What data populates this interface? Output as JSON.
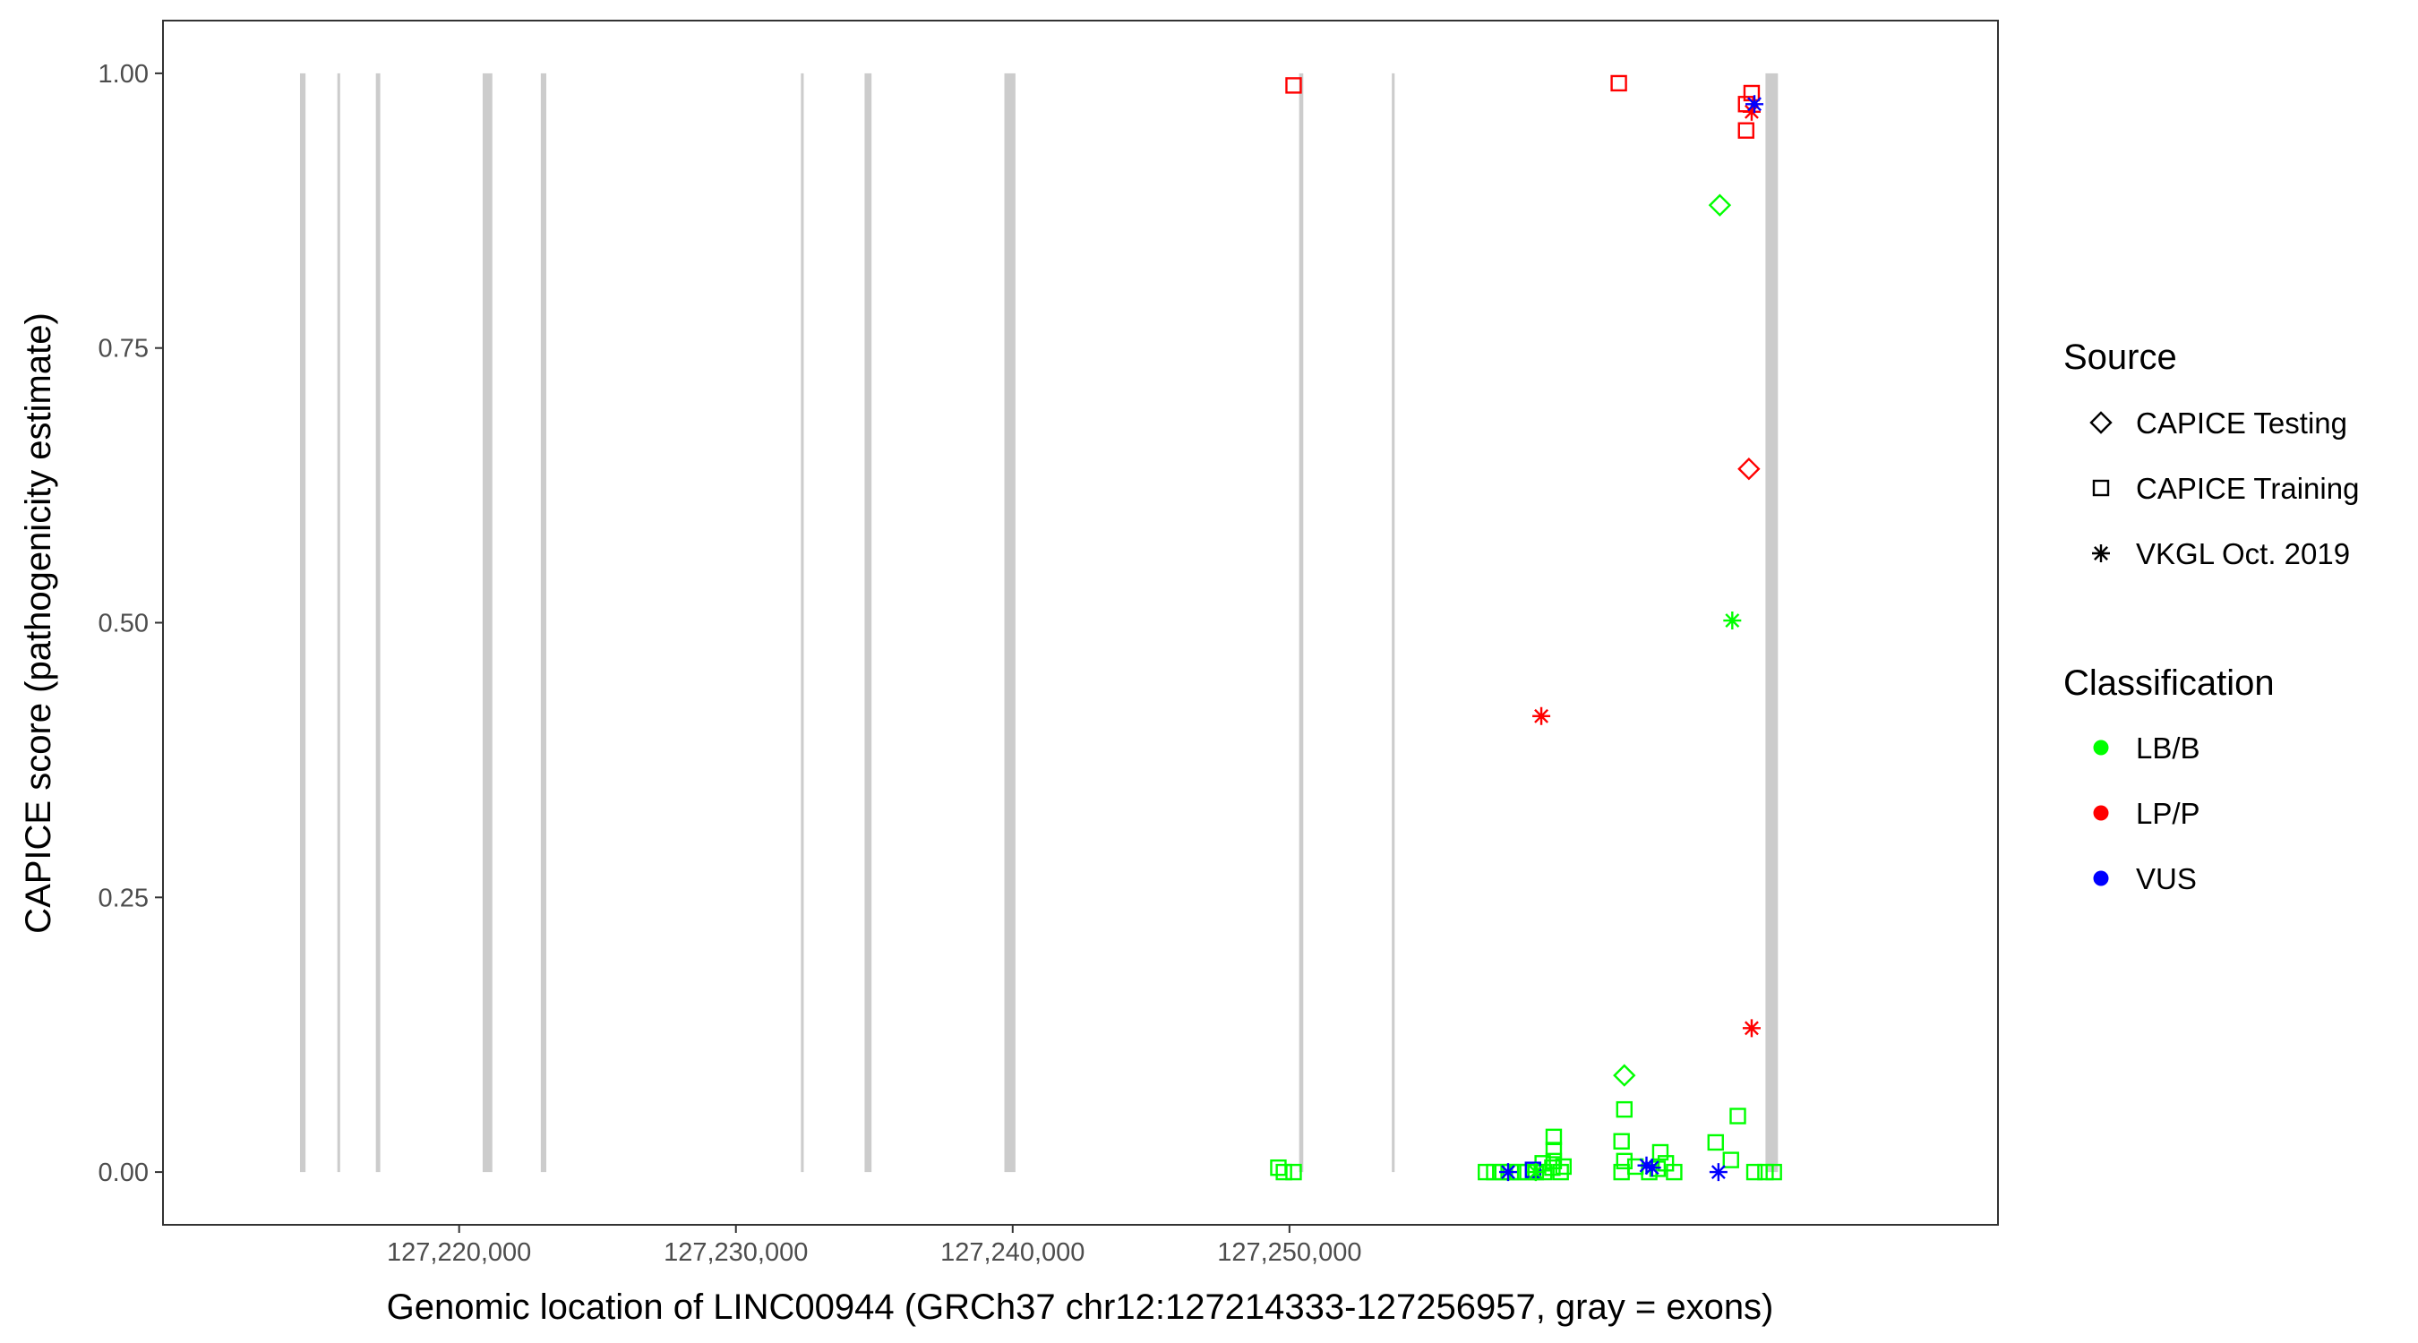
{
  "chart_data": {
    "type": "scatter",
    "title": "",
    "xlabel": "Genomic location of LINC00944 (GRCh37 chr12:127214333-127256957, gray = exons)",
    "ylabel": "CAPICE score (pathogenicity estimate)",
    "xlim": [
      127209300,
      127275600
    ],
    "ylim": [
      -0.048,
      1.048
    ],
    "x_ticks": [
      127220000,
      127230000,
      127240000,
      127250000
    ],
    "x_tick_labels": [
      "127,220,000",
      "127,230,000",
      "127,240,000",
      "127,250,000"
    ],
    "y_ticks": [
      0,
      0.25,
      0.5,
      0.75,
      1.0
    ],
    "y_tick_labels": [
      "0.00",
      "0.25",
      "0.50",
      "0.75",
      "1.00"
    ],
    "grid": false,
    "legend_position": "right",
    "exons": [
      {
        "start": 127214250,
        "end": 127214450
      },
      {
        "start": 127215600,
        "end": 127215700
      },
      {
        "start": 127216990,
        "end": 127217150
      },
      {
        "start": 127220850,
        "end": 127221200
      },
      {
        "start": 127222950,
        "end": 127223150
      },
      {
        "start": 127232350,
        "end": 127232450
      },
      {
        "start": 127234650,
        "end": 127234900
      },
      {
        "start": 127239700,
        "end": 127240100
      },
      {
        "start": 127250350,
        "end": 127250500
      },
      {
        "start": 127253700,
        "end": 127253800
      },
      {
        "start": 127267200,
        "end": 127267650
      }
    ],
    "legend": {
      "source_title": "Source",
      "source_items": [
        {
          "label": "CAPICE Testing",
          "shape": "diamond"
        },
        {
          "label": "CAPICE Training",
          "shape": "square"
        },
        {
          "label": "VKGL Oct. 2019",
          "shape": "asterisk"
        }
      ],
      "class_title": "Classification",
      "class_items": [
        {
          "label": "LB/B",
          "color": "#00ff00"
        },
        {
          "label": "LP/P",
          "color": "#ff0000"
        },
        {
          "label": "VUS",
          "color": "#0000ff"
        }
      ]
    },
    "series": [
      {
        "name": "CAPICE Testing",
        "shape": "diamond",
        "points": [
          {
            "x": 127265550,
            "y": 0.88,
            "class": "LB/B"
          },
          {
            "x": 127266600,
            "y": 0.64,
            "class": "LP/P"
          },
          {
            "x": 127262100,
            "y": 0.088,
            "class": "LB/B"
          }
        ]
      },
      {
        "name": "CAPICE Training",
        "shape": "square",
        "points": [
          {
            "x": 127250150,
            "y": 0.989,
            "class": "LP/P"
          },
          {
            "x": 127261900,
            "y": 0.991,
            "class": "LP/P"
          },
          {
            "x": 127266700,
            "y": 0.982,
            "class": "LP/P"
          },
          {
            "x": 127266500,
            "y": 0.972,
            "class": "LP/P"
          },
          {
            "x": 127266500,
            "y": 0.948,
            "class": "LP/P"
          },
          {
            "x": 127249600,
            "y": 0.004,
            "class": "LB/B"
          },
          {
            "x": 127249800,
            "y": 0.0,
            "class": "LB/B"
          },
          {
            "x": 127250150,
            "y": 0.0,
            "class": "LB/B"
          },
          {
            "x": 127257100,
            "y": 0.0,
            "class": "LB/B"
          },
          {
            "x": 127257400,
            "y": 0.0,
            "class": "LB/B"
          },
          {
            "x": 127257700,
            "y": 0.0,
            "class": "LB/B"
          },
          {
            "x": 127258000,
            "y": 0.0,
            "class": "LB/B"
          },
          {
            "x": 127258300,
            "y": 0.0,
            "class": "LB/B"
          },
          {
            "x": 127258600,
            "y": 0.0,
            "class": "LB/B"
          },
          {
            "x": 127258900,
            "y": 0.0,
            "class": "LB/B"
          },
          {
            "x": 127259200,
            "y": 0.0,
            "class": "LB/B"
          },
          {
            "x": 127259500,
            "y": 0.004,
            "class": "LB/B"
          },
          {
            "x": 127259800,
            "y": 0.0,
            "class": "LB/B"
          },
          {
            "x": 127259150,
            "y": 0.008,
            "class": "LB/B"
          },
          {
            "x": 127259550,
            "y": 0.01,
            "class": "LB/B"
          },
          {
            "x": 127259550,
            "y": 0.02,
            "class": "LB/B"
          },
          {
            "x": 127259550,
            "y": 0.032,
            "class": "LB/B"
          },
          {
            "x": 127259900,
            "y": 0.005,
            "class": "LB/B"
          },
          {
            "x": 127262000,
            "y": 0.0,
            "class": "LB/B"
          },
          {
            "x": 127262100,
            "y": 0.01,
            "class": "LB/B"
          },
          {
            "x": 127262000,
            "y": 0.028,
            "class": "LB/B"
          },
          {
            "x": 127262100,
            "y": 0.057,
            "class": "LB/B"
          },
          {
            "x": 127262500,
            "y": 0.005,
            "class": "LB/B"
          },
          {
            "x": 127263000,
            "y": 0.0,
            "class": "LB/B"
          },
          {
            "x": 127263300,
            "y": 0.003,
            "class": "LB/B"
          },
          {
            "x": 127263600,
            "y": 0.008,
            "class": "LB/B"
          },
          {
            "x": 127263400,
            "y": 0.018,
            "class": "LB/B"
          },
          {
            "x": 127263900,
            "y": 0.0,
            "class": "LB/B"
          },
          {
            "x": 127265400,
            "y": 0.027,
            "class": "LB/B"
          },
          {
            "x": 127265950,
            "y": 0.011,
            "class": "LB/B"
          },
          {
            "x": 127266200,
            "y": 0.051,
            "class": "LB/B"
          },
          {
            "x": 127266800,
            "y": 0.0,
            "class": "LB/B"
          },
          {
            "x": 127267200,
            "y": 0.0,
            "class": "LB/B"
          },
          {
            "x": 127267500,
            "y": 0.0,
            "class": "LB/B"
          },
          {
            "x": 127258800,
            "y": 0.002,
            "class": "VUS"
          }
        ]
      },
      {
        "name": "VKGL Oct. 2019",
        "shape": "asterisk",
        "points": [
          {
            "x": 127266700,
            "y": 0.965,
            "class": "LP/P"
          },
          {
            "x": 127266800,
            "y": 0.972,
            "class": "VUS"
          },
          {
            "x": 127266700,
            "y": 0.131,
            "class": "LP/P"
          },
          {
            "x": 127266000,
            "y": 0.502,
            "class": "LB/B"
          },
          {
            "x": 127259100,
            "y": 0.415,
            "class": "LP/P"
          },
          {
            "x": 127257900,
            "y": 0.0,
            "class": "VUS"
          },
          {
            "x": 127258900,
            "y": 0.0,
            "class": "LB/B"
          },
          {
            "x": 127262900,
            "y": 0.006,
            "class": "VUS"
          },
          {
            "x": 127263100,
            "y": 0.004,
            "class": "VUS"
          },
          {
            "x": 127265500,
            "y": 0.0,
            "class": "VUS"
          }
        ]
      }
    ]
  }
}
